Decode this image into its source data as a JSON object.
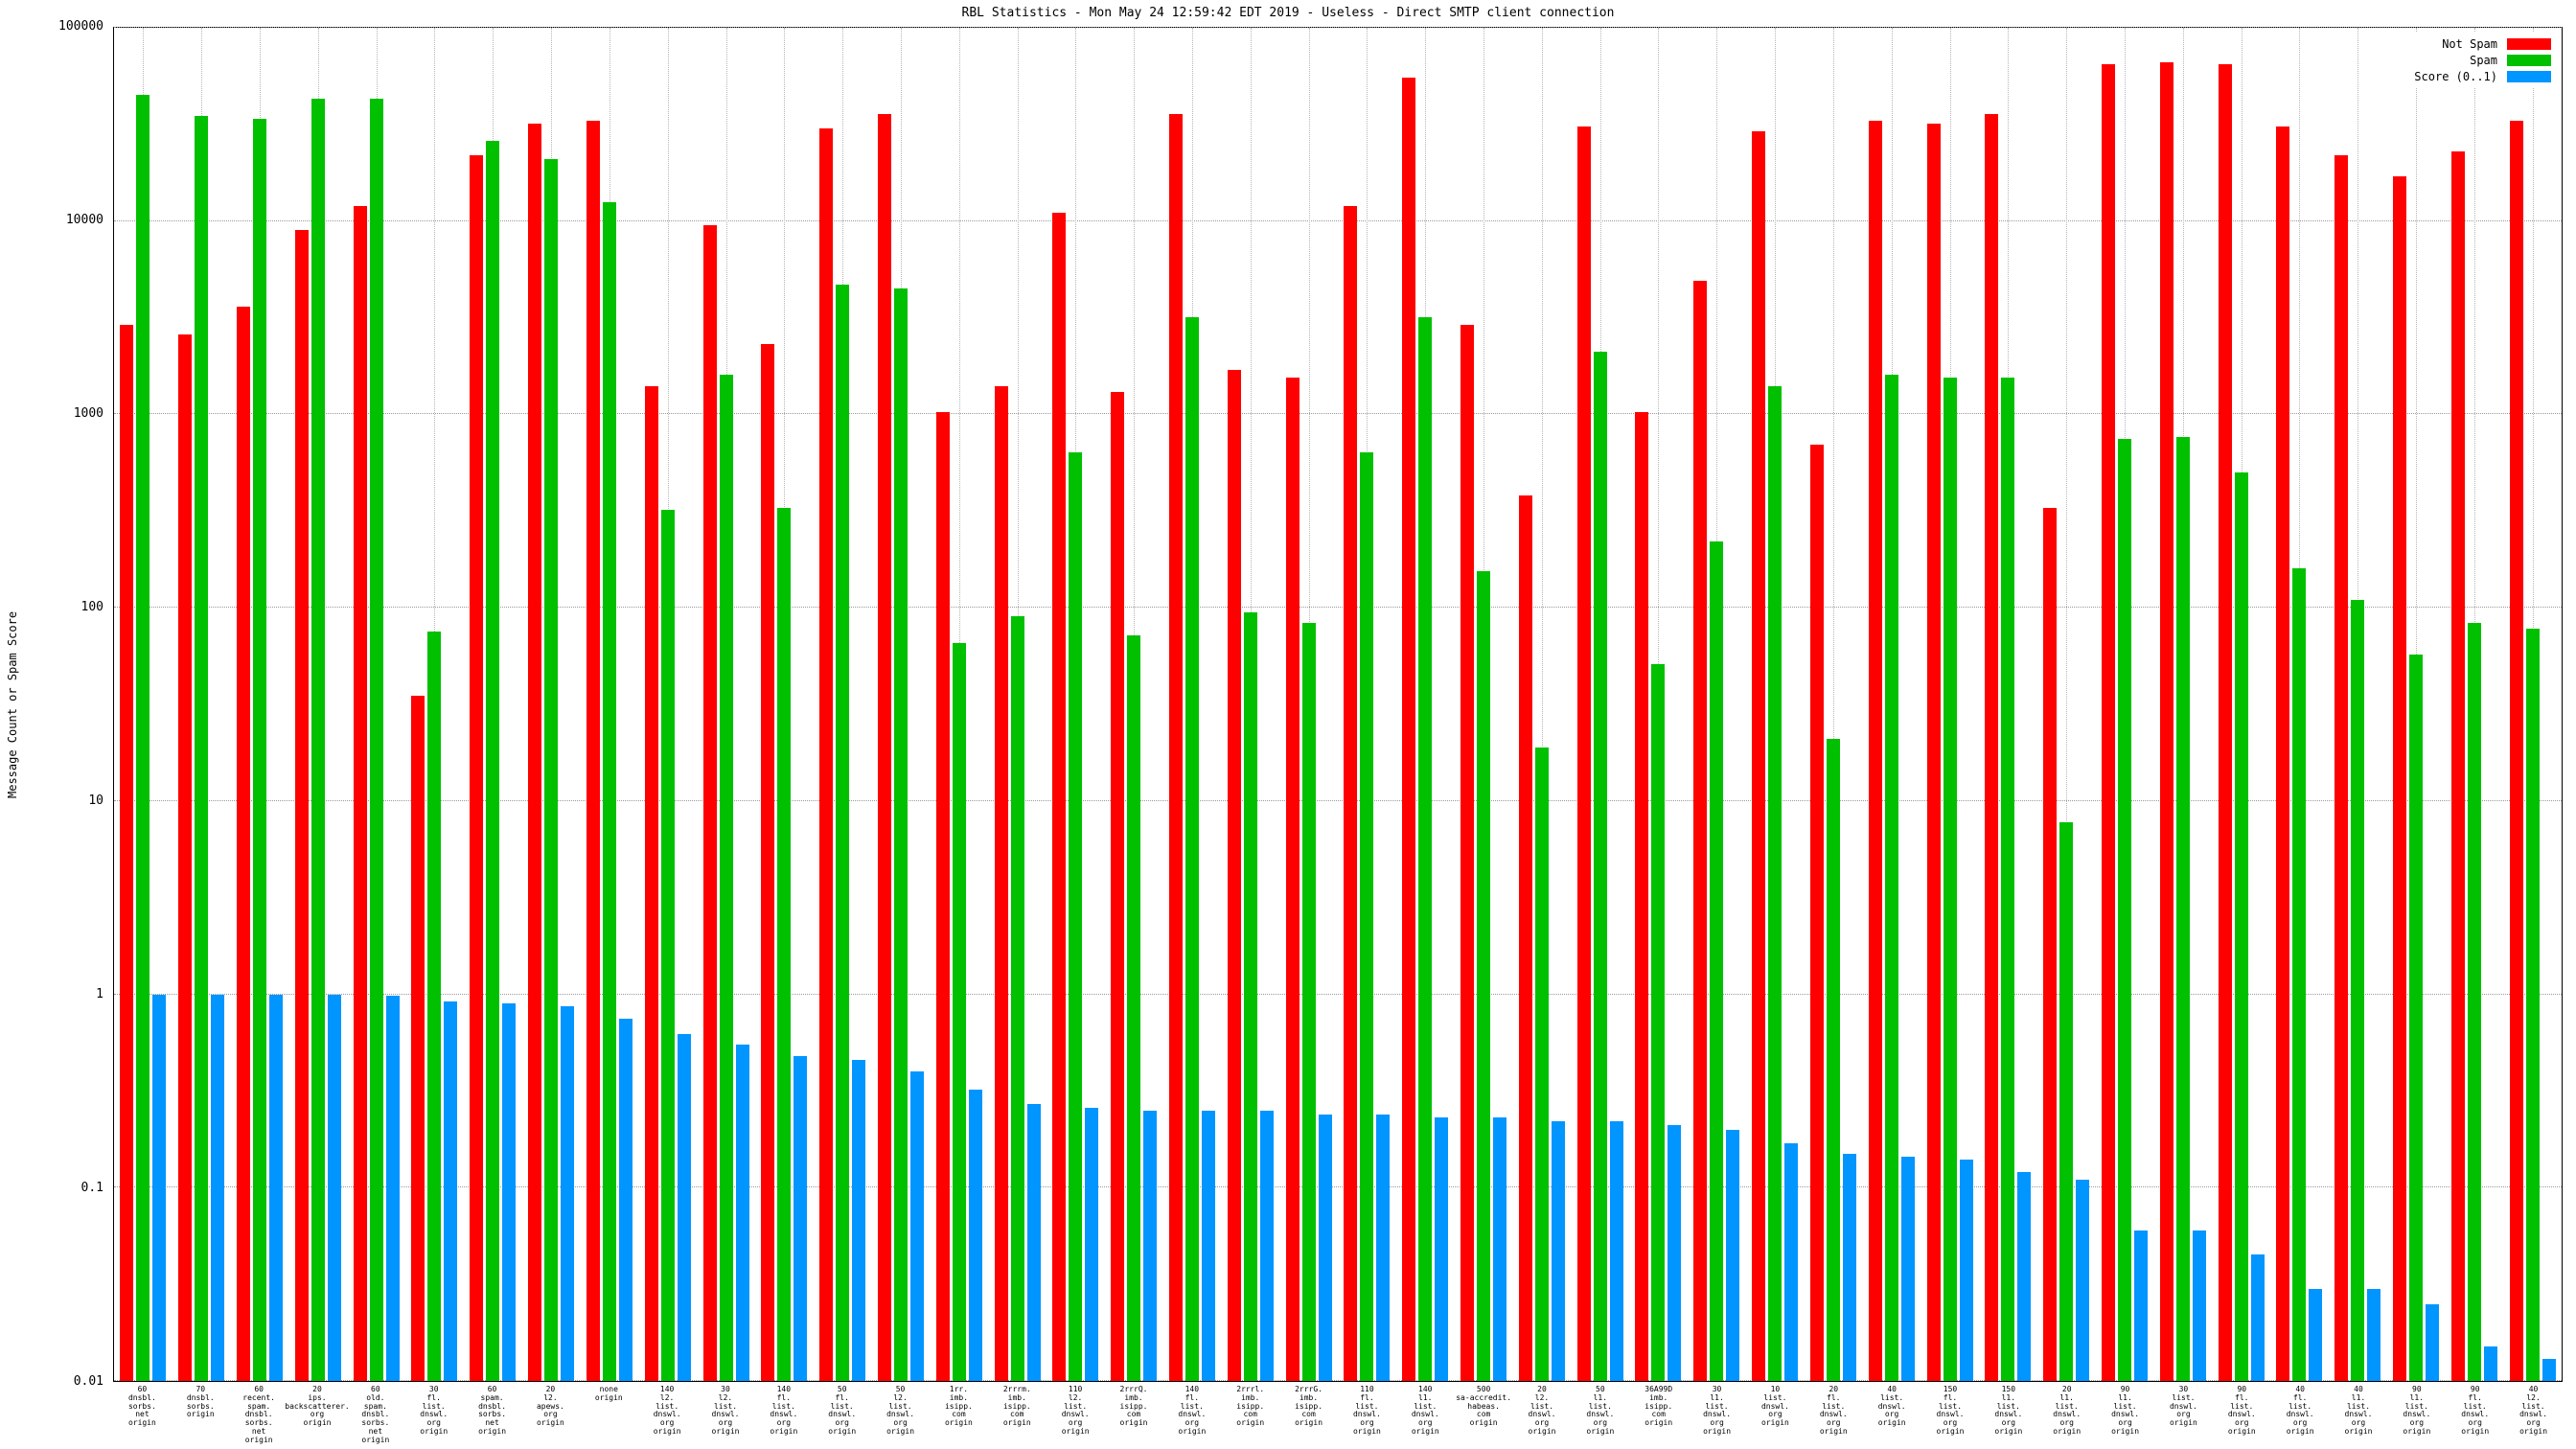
{
  "chart_data": {
    "type": "bar",
    "title": "RBL Statistics - Mon May 24 12:59:42 EDT 2019 - Useless - Direct SMTP client connection",
    "ylabel": "Message Count or Spam Score",
    "xlabel": "",
    "y_scale": "log",
    "ylim": [
      0.01,
      100000
    ],
    "y_ticks": [
      "100000",
      "10000",
      "1000",
      "100",
      "10",
      "1",
      "0.1",
      "0.01"
    ],
    "grid": true,
    "legend_position": "top-right",
    "colors": {
      "not_spam": "#ff0000",
      "spam": "#00c000",
      "score": "#0095ff"
    },
    "categories": [
      [
        "60",
        "dnsbl.",
        "sorbs.",
        "net",
        "origin"
      ],
      [
        "70",
        "dnsbl.",
        "sorbs.",
        "origin"
      ],
      [
        "60",
        "recent.",
        "spam.",
        "dnsbl.",
        "sorbs.",
        "net",
        "origin"
      ],
      [
        "20",
        "ips.",
        "backscatterer.",
        "org",
        "origin"
      ],
      [
        "60",
        "old.",
        "spam.",
        "dnsbl.",
        "sorbs.",
        "net",
        "origin"
      ],
      [
        "30",
        "fl.",
        "list.",
        "dnswl.",
        "org",
        "origin"
      ],
      [
        "60",
        "spam.",
        "dnsbl.",
        "sorbs.",
        "net",
        "origin"
      ],
      [
        "20",
        "l2.",
        "apews.",
        "org",
        "origin"
      ],
      [
        "none",
        "origin"
      ],
      [
        "140",
        "l2.",
        "list.",
        "dnswl.",
        "org",
        "origin"
      ],
      [
        "30",
        "l2.",
        "list.",
        "dnswl.",
        "org",
        "origin"
      ],
      [
        "140",
        "fl.",
        "list.",
        "dnswl.",
        "org",
        "origin"
      ],
      [
        "50",
        "fl.",
        "list.",
        "dnswl.",
        "org",
        "origin"
      ],
      [
        "50",
        "l2.",
        "list.",
        "dnswl.",
        "org",
        "origin"
      ],
      [
        "1rr.",
        "imb.",
        "isipp.",
        "com",
        "origin"
      ],
      [
        "2rrrm.",
        "imb.",
        "isipp.",
        "com",
        "origin"
      ],
      [
        "110",
        "l2.",
        "list.",
        "dnswl.",
        "org",
        "origin"
      ],
      [
        "2rrrQ.",
        "imb.",
        "isipp.",
        "com",
        "origin"
      ],
      [
        "140",
        "fl.",
        "list.",
        "dnswl.",
        "org",
        "origin"
      ],
      [
        "2rrrl.",
        "imb.",
        "isipp.",
        "com",
        "origin"
      ],
      [
        "2rrrG.",
        "imb.",
        "isipp.",
        "com",
        "origin"
      ],
      [
        "110",
        "fl.",
        "list.",
        "dnswl.",
        "org",
        "origin"
      ],
      [
        "140",
        "l1.",
        "list.",
        "dnswl.",
        "org",
        "origin"
      ],
      [
        "500",
        "sa-accredit.",
        "habeas.",
        "com",
        "origin"
      ],
      [
        "20",
        "l2.",
        "list.",
        "dnswl.",
        "org",
        "origin"
      ],
      [
        "50",
        "l1.",
        "list.",
        "dnswl.",
        "org",
        "origin"
      ],
      [
        "36A99D",
        "imb.",
        "isipp.",
        "com",
        "origin"
      ],
      [
        "30",
        "l1.",
        "list.",
        "dnswl.",
        "org",
        "origin"
      ],
      [
        "10",
        "list.",
        "dnswl.",
        "org",
        "origin"
      ],
      [
        "20",
        "fl.",
        "list.",
        "dnswl.",
        "org",
        "origin"
      ],
      [
        "40",
        "list.",
        "dnswl.",
        "org",
        "origin"
      ],
      [
        "150",
        "fl.",
        "list.",
        "dnswl.",
        "org",
        "origin"
      ],
      [
        "150",
        "l1.",
        "list.",
        "dnswl.",
        "org",
        "origin"
      ],
      [
        "20",
        "l1.",
        "list.",
        "dnswl.",
        "org",
        "origin"
      ],
      [
        "90",
        "l1.",
        "list.",
        "dnswl.",
        "org",
        "origin"
      ],
      [
        "30",
        "list.",
        "dnswl.",
        "org",
        "origin"
      ],
      [
        "90",
        "fl.",
        "list.",
        "dnswl.",
        "org",
        "origin"
      ],
      [
        "40",
        "fl.",
        "list.",
        "dnswl.",
        "org",
        "origin"
      ],
      [
        "40",
        "l1.",
        "list.",
        "dnswl.",
        "org",
        "origin"
      ],
      [
        "90",
        "l1.",
        "list.",
        "dnswl.",
        "org",
        "origin"
      ],
      [
        "90",
        "fl.",
        "list.",
        "dnswl.",
        "org",
        "origin"
      ],
      [
        "40",
        "l2.",
        "list.",
        "dnswl.",
        "org",
        "origin"
      ]
    ],
    "series": [
      {
        "name": "Not Spam",
        "color_key": "not_spam",
        "values": [
          2900,
          2600,
          3600,
          9000,
          12000,
          35,
          22000,
          32000,
          33000,
          1400,
          9500,
          2300,
          30000,
          36000,
          1030,
          1400,
          11000,
          1300,
          36000,
          1700,
          1550,
          12000,
          55000,
          2900,
          380,
          31000,
          1030,
          4900,
          29000,
          700,
          33000,
          32000,
          36000,
          330,
          65000,
          66000,
          65000,
          31000,
          22000,
          17000,
          23000,
          33000
        ]
      },
      {
        "name": "Spam",
        "color_key": "spam",
        "values": [
          45000,
          35000,
          34000,
          43000,
          43000,
          75,
          26000,
          21000,
          12500,
          320,
          1600,
          330,
          4700,
          4500,
          66,
          90,
          640,
          72,
          3200,
          95,
          83,
          640,
          3200,
          155,
          19,
          2100,
          51,
          220,
          1400,
          21,
          1600,
          1550,
          1550,
          7.8,
          750,
          760,
          500,
          160,
          110,
          57,
          83,
          78
        ]
      },
      {
        "name": "Score (0..1)",
        "color_key": "score",
        "values": [
          1.0,
          1.0,
          1.0,
          0.99,
          0.98,
          0.92,
          0.9,
          0.87,
          0.75,
          0.62,
          0.55,
          0.48,
          0.46,
          0.4,
          0.32,
          0.27,
          0.26,
          0.25,
          0.25,
          0.25,
          0.24,
          0.24,
          0.23,
          0.23,
          0.22,
          0.22,
          0.21,
          0.2,
          0.17,
          0.15,
          0.145,
          0.14,
          0.12,
          0.11,
          0.06,
          0.06,
          0.045,
          0.03,
          0.03,
          0.025,
          0.015,
          0.013
        ]
      }
    ]
  }
}
